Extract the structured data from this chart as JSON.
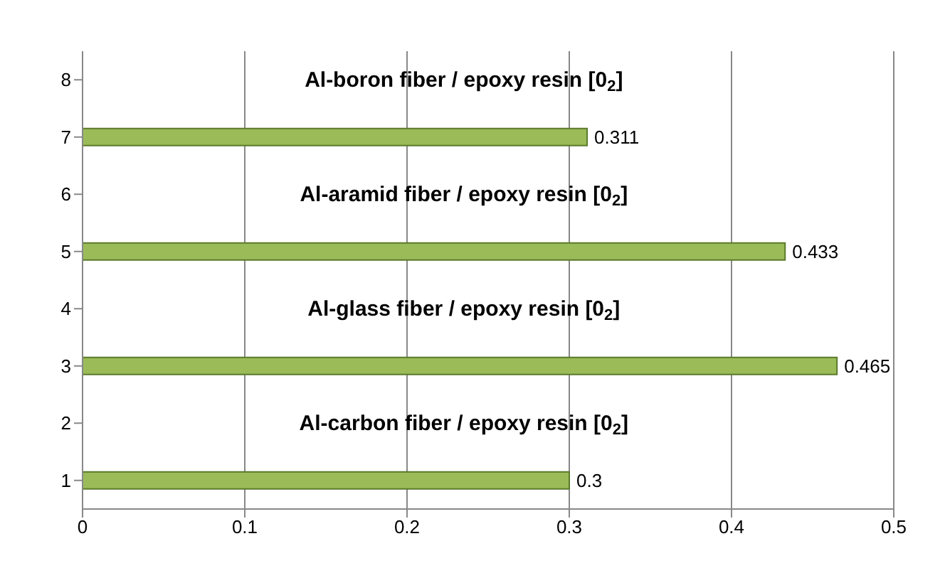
{
  "chart_data": {
    "type": "bar",
    "orientation": "horizontal",
    "categories": [
      "8",
      "7",
      "6",
      "5",
      "4",
      "3",
      "2",
      "1"
    ],
    "values": [
      null,
      0.311,
      null,
      0.433,
      null,
      0.465,
      null,
      0.3
    ],
    "color": "#9bbb59",
    "xlim": [
      0,
      0.5
    ],
    "xticks": [
      0,
      0.1,
      0.2,
      0.3,
      0.4,
      0.5
    ],
    "grid": "x",
    "data_labels": true,
    "annotations": [
      "Al-boron fiber / epoxy resin [0$_{2}$]",
      "Al-aramid fiber / epoxy resin [0$_{2}$]",
      "Al-glass fiber / epoxy resin [0$_{2}$]",
      "Al-carbon fiber / epoxy resin [0$_{2}$]"
    ]
  }
}
